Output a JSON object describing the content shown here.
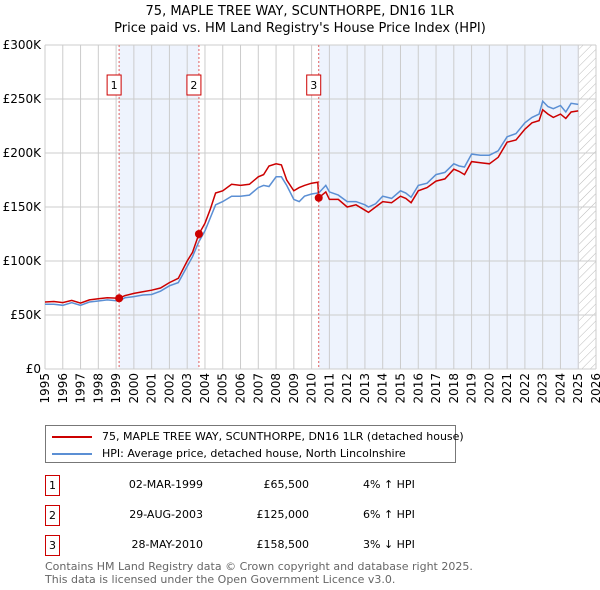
{
  "chart_data": {
    "type": "line",
    "title": "75, MAPLE TREE WAY, SCUNTHORPE, DN16 1LR",
    "subtitle": "Price paid vs. HM Land Registry's House Price Index (HPI)",
    "xlim": [
      1995,
      2026
    ],
    "ylim": [
      0,
      300000
    ],
    "x_ticks": [
      "1995",
      "1996",
      "1997",
      "1998",
      "1999",
      "2000",
      "2001",
      "2002",
      "2003",
      "2004",
      "2005",
      "2006",
      "2007",
      "2008",
      "2009",
      "2010",
      "2011",
      "2012",
      "2013",
      "2014",
      "2015",
      "2016",
      "2017",
      "2018",
      "2019",
      "2020",
      "2021",
      "2022",
      "2023",
      "2024",
      "2025",
      "2026"
    ],
    "y_ticks": [
      {
        "v": 0,
        "label": "£0"
      },
      {
        "v": 50000,
        "label": "£50K"
      },
      {
        "v": 100000,
        "label": "£100K"
      },
      {
        "v": 150000,
        "label": "£150K"
      },
      {
        "v": 200000,
        "label": "£200K"
      },
      {
        "v": 250000,
        "label": "£250K"
      },
      {
        "v": 300000,
        "label": "£300K"
      }
    ],
    "grid": true,
    "forecast_hatch_from": 2025.05,
    "series": [
      {
        "name": "75, MAPLE TREE WAY, SCUNTHORPE, DN16 1LR (detached house)",
        "color": "#cc0000",
        "x": [
          1995,
          1995.5,
          1996,
          1996.5,
          1997,
          1997.5,
          1998,
          1998.5,
          1999.17,
          1999.5,
          2000,
          2000.5,
          2001,
          2001.5,
          2002,
          2002.5,
          2003,
          2003.3,
          2003.66,
          2004,
          2004.3,
          2004.6,
          2005,
          2005.5,
          2006,
          2006.5,
          2007,
          2007.3,
          2007.6,
          2008,
          2008.3,
          2008.6,
          2009,
          2009.3,
          2009.6,
          2010,
          2010.35,
          2010.4,
          2010.8,
          2011,
          2011.5,
          2012,
          2012.5,
          2013,
          2013.2,
          2013.6,
          2014,
          2014.5,
          2015,
          2015.3,
          2015.6,
          2016,
          2016.5,
          2017,
          2017.5,
          2018,
          2018.3,
          2018.6,
          2019,
          2019.5,
          2020,
          2020.5,
          2021,
          2021.5,
          2022,
          2022.4,
          2022.8,
          2023,
          2023.3,
          2023.6,
          2024,
          2024.3,
          2024.6,
          2025
        ],
        "values": [
          62000,
          62500,
          61500,
          63500,
          61000,
          64000,
          65000,
          66000,
          65500,
          68000,
          70000,
          71500,
          73000,
          75000,
          80000,
          84000,
          100000,
          108000,
          125000,
          135000,
          148000,
          163000,
          165000,
          171000,
          170000,
          171000,
          178000,
          180000,
          188000,
          190000,
          189000,
          175000,
          165000,
          168000,
          170000,
          172000,
          173000,
          158500,
          164000,
          157000,
          157000,
          150000,
          152000,
          147000,
          145000,
          150000,
          155000,
          154000,
          160000,
          158000,
          154000,
          165000,
          168000,
          174000,
          176000,
          185000,
          183000,
          180000,
          192000,
          191000,
          190000,
          196000,
          210000,
          212000,
          222000,
          228000,
          230000,
          240000,
          236000,
          233000,
          236000,
          232000,
          238000,
          239000
        ]
      },
      {
        "name": "HPI: Average price, detached house, North Lincolnshire",
        "color": "#5b8fd4",
        "x": [
          1995,
          1995.5,
          1996,
          1996.5,
          1997,
          1997.5,
          1998,
          1998.5,
          1999.17,
          1999.5,
          2000,
          2000.5,
          2001,
          2001.5,
          2002,
          2002.5,
          2003,
          2003.3,
          2003.66,
          2004,
          2004.3,
          2004.6,
          2005,
          2005.5,
          2006,
          2006.5,
          2007,
          2007.3,
          2007.6,
          2008,
          2008.3,
          2008.6,
          2009,
          2009.3,
          2009.6,
          2010,
          2010.35,
          2010.4,
          2010.8,
          2011,
          2011.5,
          2012,
          2012.5,
          2013,
          2013.2,
          2013.6,
          2014,
          2014.5,
          2015,
          2015.3,
          2015.6,
          2016,
          2016.5,
          2017,
          2017.5,
          2018,
          2018.3,
          2018.6,
          2019,
          2019.5,
          2020,
          2020.5,
          2021,
          2021.5,
          2022,
          2022.4,
          2022.8,
          2023,
          2023.3,
          2023.6,
          2024,
          2024.3,
          2024.6,
          2025
        ],
        "values": [
          60000,
          60000,
          59000,
          61500,
          59000,
          62000,
          63000,
          64000,
          63000,
          66000,
          67000,
          68500,
          69000,
          72000,
          77000,
          80000,
          95000,
          104000,
          118000,
          128000,
          140000,
          152000,
          155000,
          160000,
          160000,
          161000,
          168000,
          170000,
          169000,
          178000,
          178000,
          170000,
          157000,
          155000,
          160000,
          162000,
          163000,
          163000,
          170000,
          164000,
          161000,
          155000,
          155000,
          152000,
          150000,
          153000,
          160000,
          158000,
          165000,
          163000,
          159000,
          170000,
          172000,
          180000,
          182000,
          190000,
          188000,
          187000,
          199000,
          198000,
          198000,
          202000,
          215000,
          218000,
          228000,
          233000,
          236000,
          248000,
          243000,
          241000,
          244000,
          238000,
          246000,
          245000
        ]
      }
    ],
    "sales": [
      {
        "n": "1",
        "x": 1999.17,
        "value": 65500,
        "date": "02-MAR-1999",
        "price": "£65,500",
        "hpi": "4% ↑ HPI"
      },
      {
        "n": "2",
        "x": 2003.66,
        "value": 125000,
        "date": "29-AUG-2003",
        "price": "£125,000",
        "hpi": "6% ↑ HPI"
      },
      {
        "n": "3",
        "x": 2010.4,
        "value": 158500,
        "date": "28-MAY-2010",
        "price": "£158,500",
        "hpi": "3% ↓ HPI"
      }
    ]
  },
  "footer": {
    "line1": "Contains HM Land Registry data © Crown copyright and database right 2025.",
    "line2": "This data is licensed under the Open Government Licence v3.0."
  }
}
